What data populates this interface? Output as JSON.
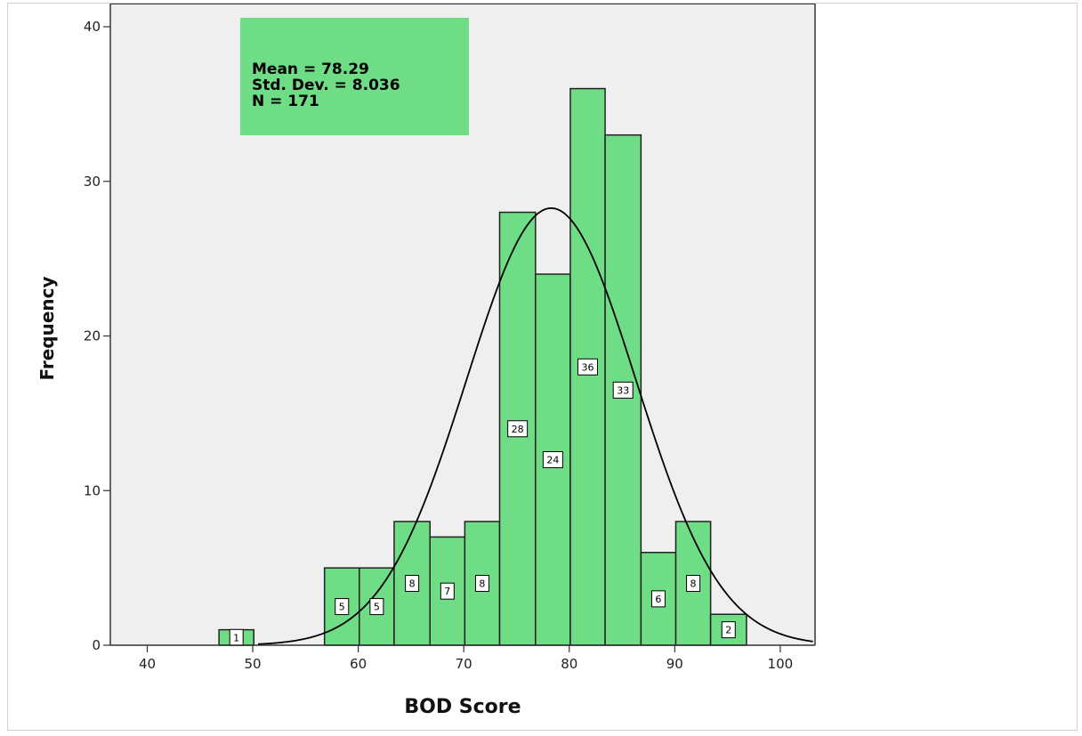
{
  "chart_data": {
    "type": "bar",
    "subtype": "histogram",
    "xlabel": "BOD Score",
    "ylabel": "Frequency",
    "xlim": [
      36.5,
      103.3
    ],
    "ylim": [
      0,
      41.5
    ],
    "xticks": [
      40,
      50,
      60,
      70,
      80,
      90,
      100
    ],
    "yticks": [
      0,
      10,
      20,
      30,
      40
    ],
    "grid": false,
    "bin_width": 3.33,
    "bins": [
      {
        "start": 46.8,
        "end": 50.1,
        "value": 1
      },
      {
        "start": 56.8,
        "end": 60.1,
        "value": 5
      },
      {
        "start": 60.1,
        "end": 63.4,
        "value": 5
      },
      {
        "start": 63.4,
        "end": 66.8,
        "value": 8
      },
      {
        "start": 66.8,
        "end": 70.1,
        "value": 7
      },
      {
        "start": 70.1,
        "end": 73.4,
        "value": 8
      },
      {
        "start": 73.4,
        "end": 76.8,
        "value": 28
      },
      {
        "start": 76.8,
        "end": 80.1,
        "value": 24
      },
      {
        "start": 80.1,
        "end": 83.4,
        "value": 36
      },
      {
        "start": 83.4,
        "end": 86.8,
        "value": 33
      },
      {
        "start": 86.8,
        "end": 90.1,
        "value": 6
      },
      {
        "start": 90.1,
        "end": 93.4,
        "value": 8
      },
      {
        "start": 93.4,
        "end": 96.8,
        "value": 2
      }
    ],
    "normal_curve": {
      "mean": 78.29,
      "std": 8.036,
      "n": 171
    },
    "stats_box": [
      "Mean = 78.29",
      "Std. Dev. = 8.036",
      "N = 171"
    ],
    "colors": {
      "bar_fill": "#6fdc86",
      "bar_stroke": "#222222",
      "plot_background": "#efefef",
      "stats_box_fill": "#6fdc86",
      "curve": "#000000"
    }
  }
}
